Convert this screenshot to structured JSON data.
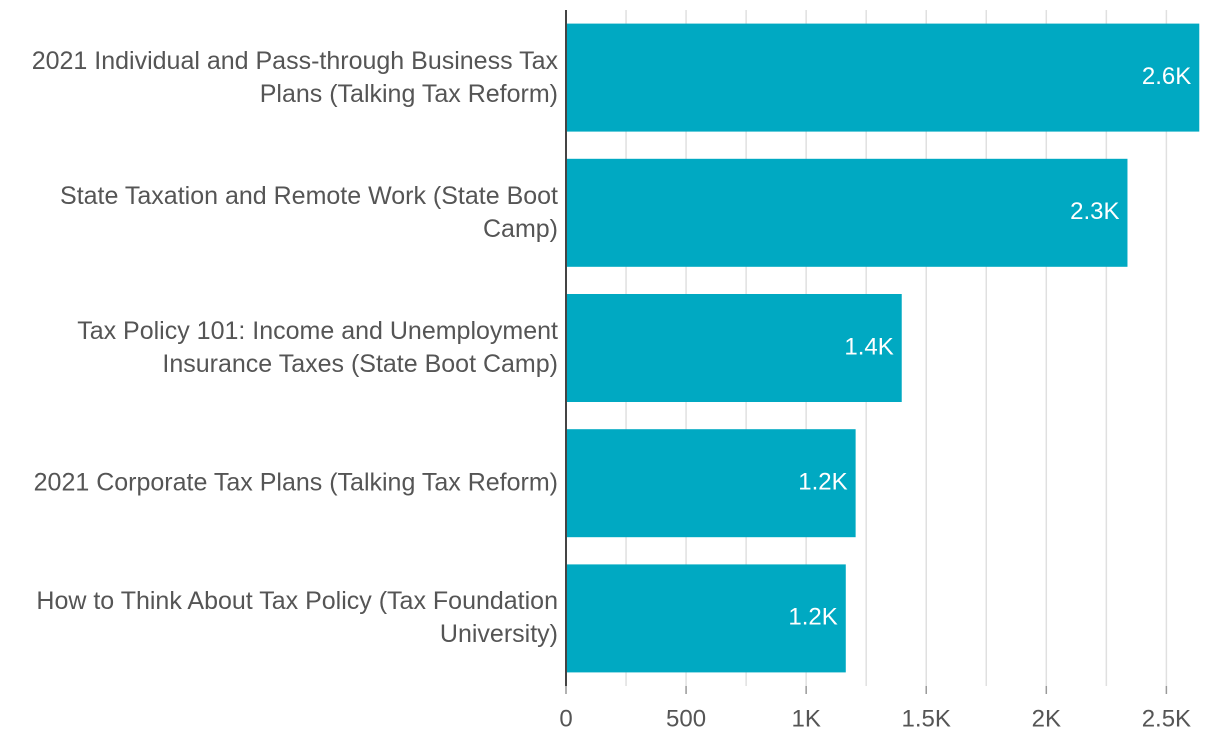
{
  "chart_data": {
    "type": "hbar",
    "categories": [
      "2021 Individual and Pass-through Business Tax Plans (Talking Tax Reform)",
      "State Taxation and Remote Work (State Boot Camp)",
      "Tax Policy 101: Income and Unemployment Insurance Taxes (State Boot Camp)",
      "2021 Corporate Tax Plans (Talking Tax Reform)",
      "How to Think About Tax Policy (Tax Foundation University)"
    ],
    "values": [
      2637,
      2338,
      1398,
      1206,
      1165
    ],
    "value_labels": [
      "2.6K",
      "2.3K",
      "1.4K",
      "1.2K",
      "1.2K"
    ],
    "color": "#00a9c2",
    "xlim": [
      0,
      2640
    ],
    "xticks": [
      0,
      500,
      {
        "value": 1000,
        "label": "1K"
      },
      {
        "value": 1500,
        "label": "1.5K"
      },
      {
        "value": 2000,
        "label": "2K"
      },
      {
        "value": 2500,
        "label": "2.5K"
      }
    ],
    "minor_xticks": [
      250,
      750,
      1250,
      1750,
      2250
    ],
    "grid": true
  }
}
